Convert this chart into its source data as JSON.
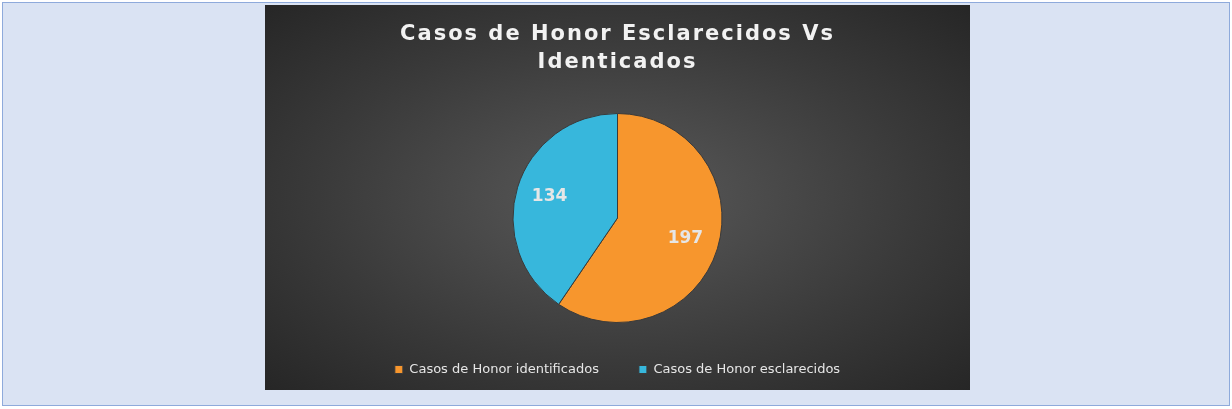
{
  "chart_data": {
    "type": "pie",
    "title": "Casos de Honor Esclarecidos Vs Identicados",
    "categories": [
      "Casos de Honor identificados",
      "Casos de Honor esclarecidos"
    ],
    "values": [
      197,
      134
    ],
    "colors": [
      "#f7962d",
      "#37b7dc"
    ],
    "data_labels": true,
    "legend": "bottom"
  }
}
